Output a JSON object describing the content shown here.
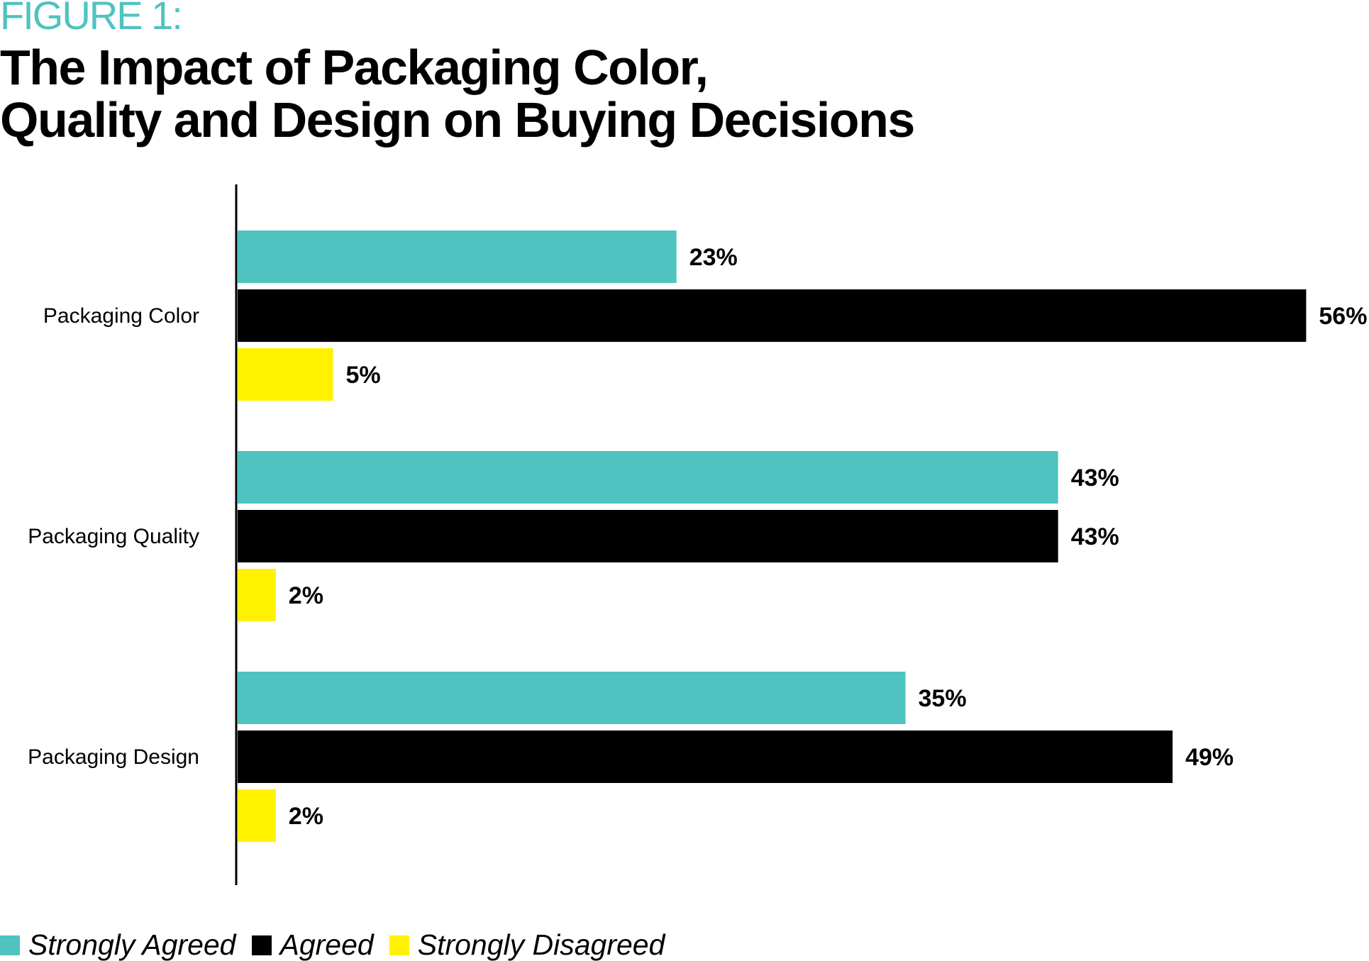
{
  "figure_label": "FIGURE 1:",
  "title_line1": "The Impact of Packaging Color,",
  "title_line2": "Quality and Design on Buying Decisions",
  "colors": {
    "strongly_agreed": "#4fc3c0",
    "agreed": "#000000",
    "strongly_disagreed": "#fff200",
    "figure_label": "#4fc3c0"
  },
  "chart_data": {
    "type": "bar",
    "orientation": "horizontal",
    "title": "The Impact of Packaging Color, Quality and Design on Buying Decisions",
    "categories": [
      "Packaging Color",
      "Packaging Quality",
      "Packaging Design"
    ],
    "series": [
      {
        "name": "Strongly Agreed",
        "color": "#4fc3c0",
        "values": [
          23,
          43,
          35
        ]
      },
      {
        "name": "Agreed",
        "color": "#000000",
        "values": [
          56,
          43,
          49
        ]
      },
      {
        "name": "Strongly Disagreed",
        "color": "#fff200",
        "values": [
          5,
          2,
          2
        ]
      }
    ],
    "value_format": "{v}%",
    "xlim": [
      0,
      56
    ],
    "grid": false,
    "legend_position": "bottom-left"
  }
}
